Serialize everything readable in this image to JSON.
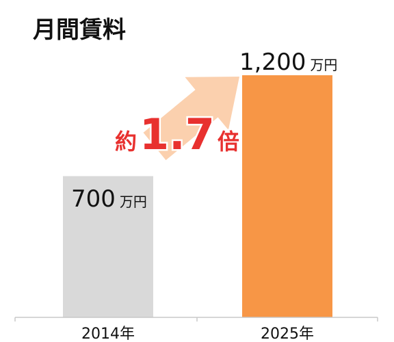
{
  "chart_data": {
    "type": "bar",
    "title": "月間賃料",
    "categories": [
      "2014年",
      "2025年"
    ],
    "values": [
      700,
      1200
    ],
    "unit": "万円",
    "value_labels": [
      "700",
      "1,200"
    ],
    "ylim": [
      0,
      1200
    ],
    "grid": false,
    "bar_colors": [
      "#d9d9d9",
      "#f79646"
    ],
    "annotation": {
      "prefix": "約",
      "ratio": "1.7",
      "suffix": "倍",
      "color": "#e8312f",
      "arrow_color": "#fbd0ae"
    }
  }
}
